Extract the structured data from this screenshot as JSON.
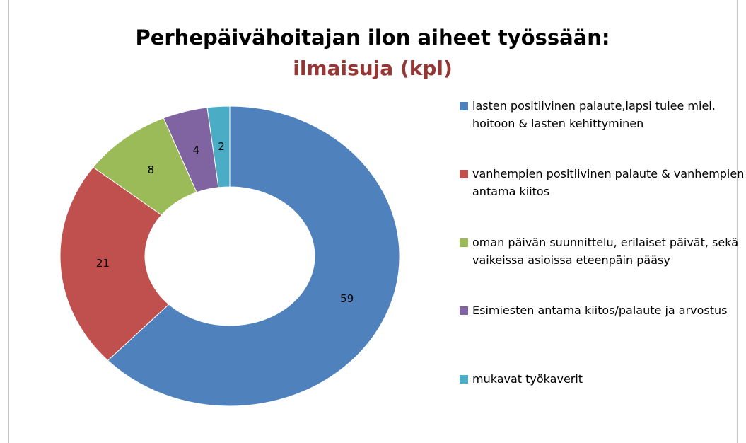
{
  "chart_data": {
    "type": "donut",
    "title": "Perhepäivähoitajan ilon aiheet työssään:",
    "subtitle": "ilmaisuja (kpl)",
    "categories": [
      "lasten positiivinen palaute,lapsi tulee miel. hoitoon & lasten kehittyminen",
      "vanhempien positiivinen palaute & vanhempien antama kiitos",
      "oman päivän suunnittelu, erilaiset päivät, sekä vaikeissa asioissa eteenpäin pääsy",
      "Esimiesten antama kiitos/palaute ja arvostus",
      "mukavat työkaverit"
    ],
    "values": [
      59,
      21,
      8,
      4,
      2
    ],
    "colors": [
      "#4f81bd",
      "#c0504d",
      "#9bbb59",
      "#8064a2",
      "#4bacc6"
    ],
    "legend": "right"
  }
}
